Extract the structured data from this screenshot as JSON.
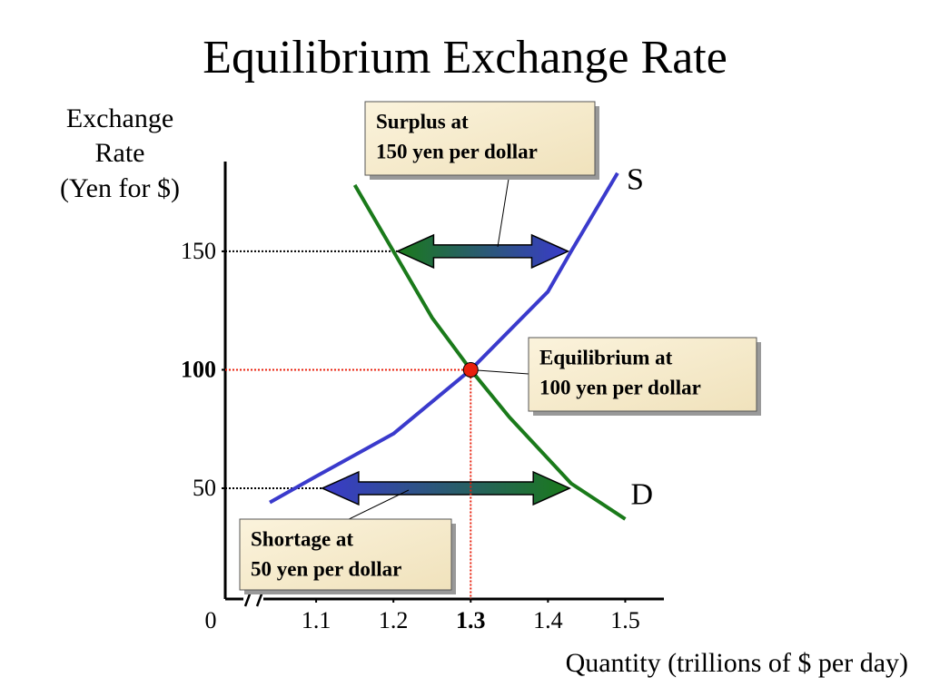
{
  "chart_data": {
    "type": "line",
    "title": "Equilibrium Exchange Rate",
    "y_label": [
      "Exchange",
      "Rate",
      "(Yen for $)"
    ],
    "x_label": "Quantity (trillions of $ per day)",
    "x_origin_label": "0",
    "xlim": [
      1.0,
      1.55
    ],
    "ylim": [
      0,
      190
    ],
    "xticks": [
      1.1,
      1.2,
      1.3,
      1.4,
      1.5
    ],
    "yticks": [
      50,
      100,
      150
    ],
    "series": [
      {
        "name": "S",
        "color": "#3a3acc",
        "x": [
          1.04,
          1.1,
          1.2,
          1.3,
          1.4,
          1.43,
          1.49
        ],
        "values": [
          44,
          55,
          73,
          100,
          133,
          150,
          183
        ]
      },
      {
        "name": "D",
        "color": "#1a7a1a",
        "x": [
          1.15,
          1.2,
          1.25,
          1.3,
          1.35,
          1.43,
          1.5
        ],
        "values": [
          178,
          150,
          122,
          100,
          80,
          52,
          37
        ]
      }
    ],
    "equilibrium": {
      "x": 1.3,
      "y": 100,
      "color": "#e8200c",
      "label": [
        "Equilibrium at",
        "100 yen per dollar"
      ]
    },
    "annotations": [
      {
        "label": [
          "Surplus at",
          "150 yen per dollar"
        ],
        "y": 150,
        "x_from": 1.205,
        "x_to": 1.426,
        "from_color": "#1a7a1a",
        "to_color": "#3a3acc"
      },
      {
        "label": [
          "Shortage at",
          "50 yen per dollar"
        ],
        "y": 50,
        "x_from": 1.108,
        "x_to": 1.428,
        "from_color": "#3a3acc",
        "to_color": "#1a7a1a"
      }
    ]
  }
}
